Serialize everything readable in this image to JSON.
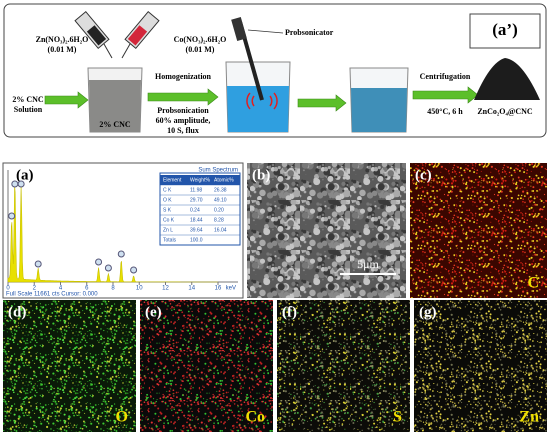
{
  "schematic": {
    "label": "(a’)",
    "reagent_1": {
      "formula": "Zn(NO₃)₂.6H₂O",
      "concentration": "(0.01 M)"
    },
    "reagent_2": {
      "formula": "Co(NO₃)₂.6H₂O",
      "concentration": "(0.01 M)"
    },
    "device": "Probsonicator",
    "start": [
      "2% CNC",
      "Solution"
    ],
    "beaker_label": "2% CNC",
    "step_1": [
      "Homogenization",
      "Probsonication",
      "60% amplitude,",
      "10 S, flux"
    ],
    "step_2": [
      "Centrifugation",
      "450°C, 6 h"
    ],
    "product": "ZnCo₂O₄@CNC"
  },
  "eds": {
    "label": "(a)",
    "table_title": "Sum Spectrum",
    "header": [
      "Element",
      "Weight%",
      "Atomic%"
    ],
    "rows": [
      [
        "C K",
        "11.98",
        "26.38"
      ],
      [
        "O K",
        "29.70",
        "49.10"
      ],
      [
        "S K",
        "0.24",
        "0.20"
      ],
      [
        "Co K",
        "18.44",
        "8.28"
      ],
      [
        "Zn L",
        "39.64",
        "16.04"
      ],
      [
        "Totals",
        "100.0"
      ]
    ],
    "x_ticks": [
      "0",
      "2",
      "4",
      "6",
      "8",
      "10",
      "12",
      "14",
      "16"
    ],
    "x_unit": "keV",
    "status": "Full Scale 11661 cts Cursor: 0.000"
  },
  "sem": {
    "label": "(b)",
    "scale_bar": "5μm"
  },
  "maps": [
    {
      "label": "(c)",
      "element": "C"
    },
    {
      "label": "(d)",
      "element": "O"
    },
    {
      "label": "(e)",
      "element": "Co"
    },
    {
      "label": "(f)",
      "element": "S"
    },
    {
      "label": "(g)",
      "element": "Zn"
    }
  ]
}
